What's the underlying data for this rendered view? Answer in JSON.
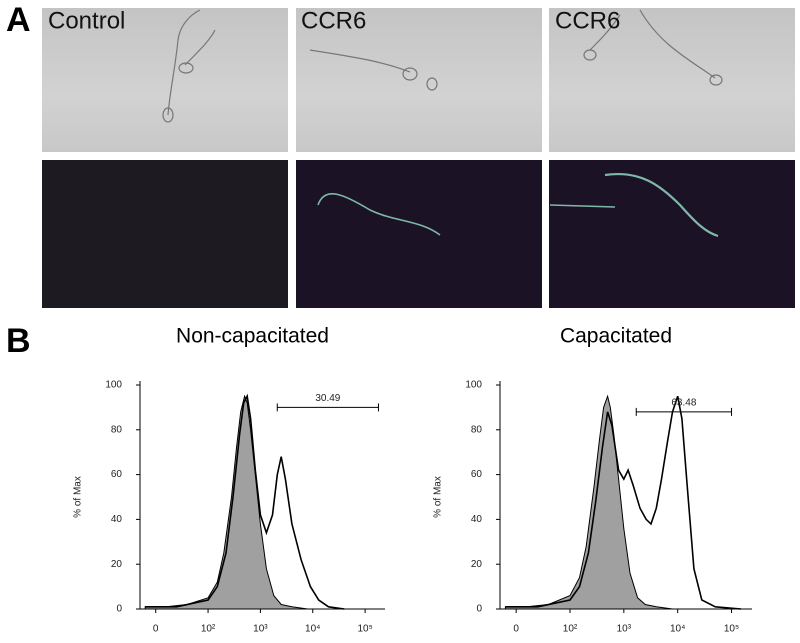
{
  "panel_a": {
    "label": "A",
    "images": [
      {
        "label": "Control"
      },
      {
        "label": "CCR6"
      },
      {
        "label": "CCR6"
      }
    ]
  },
  "panel_b": {
    "label": "B"
  },
  "chart_data": [
    {
      "type": "histogram-overlay",
      "title": "Non-capacitated",
      "ylabel": "% of Max",
      "ylim": [
        0,
        100
      ],
      "yticks": [
        0,
        20,
        40,
        60,
        80,
        100
      ],
      "xlim": [
        -30,
        240000
      ],
      "xscale": "biexponential",
      "xticks": [
        0,
        {
          "value": 100,
          "label": "10²"
        },
        {
          "value": 1000,
          "label": "10³"
        },
        {
          "value": 10000,
          "label": "10⁴"
        },
        {
          "value": 100000,
          "label": "10⁵"
        }
      ],
      "series": [
        {
          "color": "#a0a0a0",
          "fill": true,
          "x": [
            -20,
            20,
            60,
            100,
            150,
            200,
            280,
            350,
            420,
            500,
            560,
            650,
            800,
            1000,
            1300,
            1800,
            2500,
            4000,
            8000
          ],
          "values": [
            1,
            1,
            2,
            5,
            12,
            25,
            50,
            72,
            88,
            95,
            92,
            80,
            60,
            38,
            18,
            6,
            2,
            1,
            0
          ]
        },
        {
          "color": "#000000",
          "fill": false,
          "x": [
            -20,
            40,
            100,
            150,
            220,
            300,
            400,
            480,
            560,
            650,
            800,
            1000,
            1300,
            1700,
            2100,
            2500,
            3000,
            4000,
            6000,
            9000,
            13000,
            20000,
            40000
          ],
          "values": [
            1,
            1,
            4,
            10,
            25,
            50,
            78,
            92,
            95,
            85,
            62,
            42,
            34,
            42,
            60,
            68,
            58,
            38,
            22,
            10,
            4,
            1,
            0
          ]
        }
      ],
      "gate": {
        "x": [
          2100,
          180000
        ],
        "y": 90,
        "value": 30.49
      }
    },
    {
      "type": "histogram-overlay",
      "title": "Capacitated",
      "ylabel": "% of Max",
      "ylim": [
        0,
        100
      ],
      "yticks": [
        0,
        20,
        40,
        60,
        80,
        100
      ],
      "xlim": [
        -30,
        240000
      ],
      "xscale": "biexponential",
      "xticks": [
        0,
        {
          "value": 100,
          "label": "10²"
        },
        {
          "value": 1000,
          "label": "10³"
        },
        {
          "value": 10000,
          "label": "10⁴"
        },
        {
          "value": 100000,
          "label": "10⁵"
        }
      ],
      "series": [
        {
          "color": "#a0a0a0",
          "fill": true,
          "x": [
            -20,
            20,
            60,
            100,
            150,
            200,
            280,
            350,
            420,
            500,
            560,
            650,
            800,
            1000,
            1300,
            1800,
            2500,
            4000,
            8000
          ],
          "values": [
            1,
            1,
            2,
            6,
            14,
            28,
            55,
            75,
            90,
            95,
            90,
            78,
            58,
            36,
            16,
            5,
            2,
            1,
            0
          ]
        },
        {
          "color": "#000000",
          "fill": false,
          "x": [
            -20,
            40,
            100,
            150,
            220,
            300,
            400,
            500,
            600,
            800,
            1000,
            1200,
            1500,
            2000,
            2600,
            3200,
            4000,
            5000,
            6500,
            8000,
            10000,
            12000,
            15000,
            20000,
            28000,
            50000,
            150000
          ],
          "values": [
            1,
            1,
            4,
            10,
            25,
            48,
            72,
            88,
            82,
            62,
            58,
            62,
            55,
            45,
            40,
            38,
            45,
            58,
            75,
            88,
            95,
            85,
            55,
            18,
            4,
            1,
            0
          ]
        }
      ],
      "gate": {
        "x": [
          1700,
          100000
        ],
        "y": 88,
        "value": 63.48
      }
    }
  ]
}
